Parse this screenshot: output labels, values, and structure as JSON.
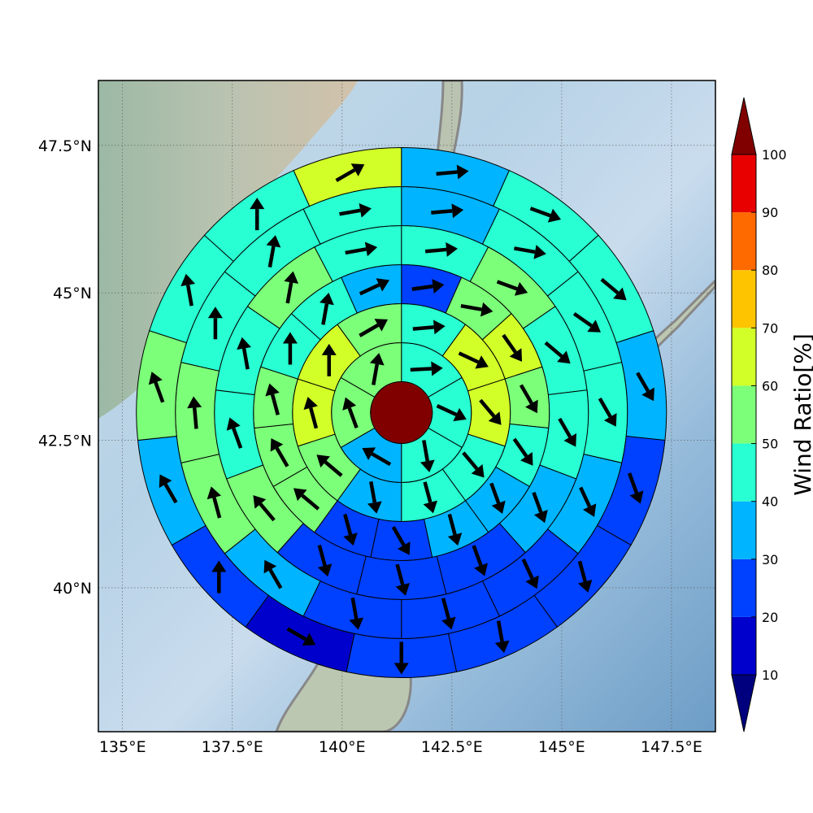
{
  "chart_data": {
    "type": "heatmap",
    "subtype": "polar sector map with wind vectors over a shaded-relief map",
    "title": "",
    "colorbar_label": "Wind Ratio[%]",
    "colorbar_ticks": [
      "10",
      "20",
      "30",
      "40",
      "50",
      "60",
      "70",
      "80",
      "90",
      "100"
    ],
    "colorbar_bounds": [
      10,
      20,
      30,
      40,
      50,
      60,
      70,
      80,
      90,
      100
    ],
    "colorbar_colors": [
      "#0000cd",
      "#0040ff",
      "#00b4ff",
      "#28ffd2",
      "#7cff79",
      "#d2ff28",
      "#ffc400",
      "#ff6a00",
      "#e80000"
    ],
    "colorbar_extend_low_color": "#00007f",
    "colorbar_extend_high_color": "#800000",
    "x_ticks": [
      "135°E",
      "137.5°E",
      "140°E",
      "142.5°E",
      "145°E",
      "147.5°E"
    ],
    "x_tick_values": [
      135,
      137.5,
      140,
      142.5,
      145,
      147.5
    ],
    "y_ticks": [
      "47.5°N",
      "45°N",
      "42.5°N",
      "40°N"
    ],
    "y_tick_values": [
      47.5,
      45,
      42.5,
      40
    ],
    "xlim": [
      134.45,
      148.5
    ],
    "ylim": [
      37.56,
      48.6
    ],
    "grid": true,
    "center_lonlat": [
      141.35,
      42.97
    ],
    "center_value": 100,
    "center_color": "#800000",
    "ring_radius_fraction": [
      0.1,
      0.25,
      0.4,
      0.55,
      0.7,
      0.85
    ],
    "sector_angles_deg_clockwise_from_north": [
      0,
      26,
      52,
      64,
      90,
      116,
      142,
      180,
      206,
      232,
      244,
      270,
      296,
      322
    ],
    "rings": [
      {
        "ring": 1,
        "sectors": [
          {
            "wind_ratio": 40,
            "arrow_dir_deg": 87
          },
          {
            "wind_ratio": 40,
            "arrow_dir_deg": 115
          },
          {
            "wind_ratio": 40,
            "arrow_dir_deg": 170
          },
          {
            "wind_ratio": 30,
            "arrow_dir_deg": 300
          },
          {
            "wind_ratio": 50,
            "arrow_dir_deg": 340
          },
          {
            "wind_ratio": 50,
            "arrow_dir_deg": 10
          }
        ]
      },
      {
        "ring": 2,
        "sectors": [
          {
            "wind_ratio": 40,
            "arrow_dir_deg": 85
          },
          {
            "wind_ratio": 60,
            "arrow_dir_deg": 115
          },
          {
            "wind_ratio": 60,
            "arrow_dir_deg": 140
          },
          {
            "wind_ratio": 40,
            "arrow_dir_deg": 140
          },
          {
            "wind_ratio": 40,
            "arrow_dir_deg": 165
          },
          {
            "wind_ratio": 30,
            "arrow_dir_deg": 170
          },
          {
            "wind_ratio": 50,
            "arrow_dir_deg": 310
          },
          {
            "wind_ratio": 60,
            "arrow_dir_deg": 345
          },
          {
            "wind_ratio": 60,
            "arrow_dir_deg": 0
          },
          {
            "wind_ratio": 50,
            "arrow_dir_deg": 60
          }
        ]
      },
      {
        "ring": 3,
        "sectors": [
          {
            "wind_ratio": 20,
            "arrow_dir_deg": 82
          },
          {
            "wind_ratio": 50,
            "arrow_dir_deg": 100
          },
          {
            "wind_ratio": 60,
            "arrow_dir_deg": 145
          },
          {
            "wind_ratio": 50,
            "arrow_dir_deg": 150
          },
          {
            "wind_ratio": 40,
            "arrow_dir_deg": 145
          },
          {
            "wind_ratio": 30,
            "arrow_dir_deg": 160
          },
          {
            "wind_ratio": 30,
            "arrow_dir_deg": 165
          },
          {
            "wind_ratio": 20,
            "arrow_dir_deg": 150
          },
          {
            "wind_ratio": 20,
            "arrow_dir_deg": 165
          },
          {
            "wind_ratio": 50,
            "arrow_dir_deg": 310
          },
          {
            "wind_ratio": 50,
            "arrow_dir_deg": 330
          },
          {
            "wind_ratio": 50,
            "arrow_dir_deg": 345
          },
          {
            "wind_ratio": 40,
            "arrow_dir_deg": 360
          },
          {
            "wind_ratio": 40,
            "arrow_dir_deg": 10
          },
          {
            "wind_ratio": 30,
            "arrow_dir_deg": 65
          }
        ]
      },
      {
        "ring": 4,
        "sectors": [
          {
            "wind_ratio": 40,
            "arrow_dir_deg": 85
          },
          {
            "wind_ratio": 50,
            "arrow_dir_deg": 110
          },
          {
            "wind_ratio": 40,
            "arrow_dir_deg": 130
          },
          {
            "wind_ratio": 40,
            "arrow_dir_deg": 150
          },
          {
            "wind_ratio": 30,
            "arrow_dir_deg": 160
          },
          {
            "wind_ratio": 20,
            "arrow_dir_deg": 160
          },
          {
            "wind_ratio": 20,
            "arrow_dir_deg": 165
          },
          {
            "wind_ratio": 20,
            "arrow_dir_deg": 165
          },
          {
            "wind_ratio": 50,
            "arrow_dir_deg": 320
          },
          {
            "wind_ratio": 40,
            "arrow_dir_deg": 340
          },
          {
            "wind_ratio": 40,
            "arrow_dir_deg": 350
          },
          {
            "wind_ratio": 50,
            "arrow_dir_deg": 10
          },
          {
            "wind_ratio": 40,
            "arrow_dir_deg": 80
          }
        ]
      },
      {
        "ring": 5,
        "sectors": [
          {
            "wind_ratio": 30,
            "arrow_dir_deg": 85
          },
          {
            "wind_ratio": 40,
            "arrow_dir_deg": 100
          },
          {
            "wind_ratio": 40,
            "arrow_dir_deg": 125
          },
          {
            "wind_ratio": 40,
            "arrow_dir_deg": 150
          },
          {
            "wind_ratio": 30,
            "arrow_dir_deg": 155
          },
          {
            "wind_ratio": 20,
            "arrow_dir_deg": 155
          },
          {
            "wind_ratio": 20,
            "arrow_dir_deg": 165
          },
          {
            "wind_ratio": 20,
            "arrow_dir_deg": 170
          },
          {
            "wind_ratio": 30,
            "arrow_dir_deg": 330
          },
          {
            "wind_ratio": 50,
            "arrow_dir_deg": 345
          },
          {
            "wind_ratio": 50,
            "arrow_dir_deg": 355
          },
          {
            "wind_ratio": 40,
            "arrow_dir_deg": 0
          },
          {
            "wind_ratio": 40,
            "arrow_dir_deg": 10
          },
          {
            "wind_ratio": 40,
            "arrow_dir_deg": 80
          }
        ]
      },
      {
        "ring": 6,
        "sectors": [
          {
            "wind_ratio": 30,
            "arrow_dir_deg": 85
          },
          {
            "wind_ratio": 40,
            "arrow_dir_deg": 110
          },
          {
            "wind_ratio": 40,
            "arrow_dir_deg": 130
          },
          {
            "wind_ratio": 30,
            "arrow_dir_deg": 150
          },
          {
            "wind_ratio": 20,
            "arrow_dir_deg": 160
          },
          {
            "wind_ratio": 20,
            "arrow_dir_deg": 165
          },
          {
            "wind_ratio": 20,
            "arrow_dir_deg": 170
          },
          {
            "wind_ratio": 20,
            "arrow_dir_deg": 180
          },
          {
            "wind_ratio": 10,
            "arrow_dir_deg": 120
          },
          {
            "wind_ratio": 20,
            "arrow_dir_deg": 0
          },
          {
            "wind_ratio": 30,
            "arrow_dir_deg": 330
          },
          {
            "wind_ratio": 50,
            "arrow_dir_deg": 340
          },
          {
            "wind_ratio": 40,
            "arrow_dir_deg": 350
          },
          {
            "wind_ratio": 40,
            "arrow_dir_deg": 0
          },
          {
            "wind_ratio": 60,
            "arrow_dir_deg": 60
          }
        ]
      }
    ]
  }
}
